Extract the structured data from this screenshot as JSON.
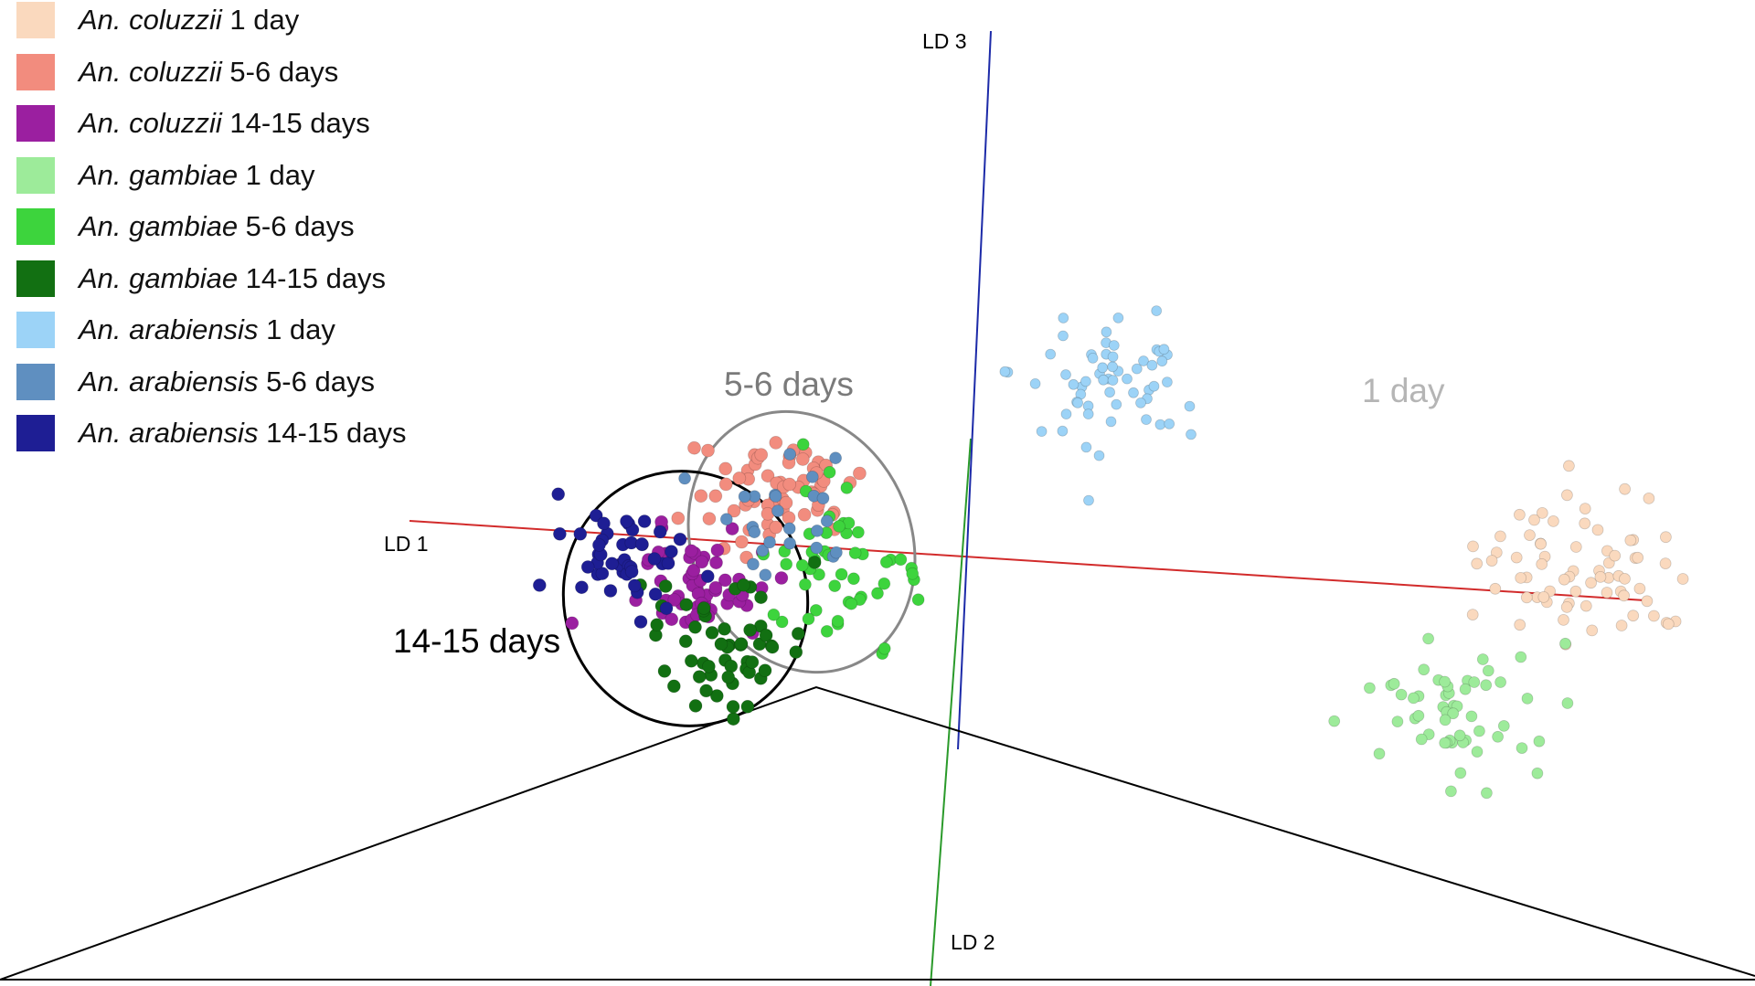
{
  "chart_data": {
    "type": "scatter",
    "title": "",
    "axes": {
      "x_label": "LD 1",
      "y_label": "LD 2",
      "z_label": "LD 3"
    },
    "legend": {
      "placement": "top-left",
      "entries": [
        {
          "species": "An. coluzzii",
          "age": "1 day",
          "color": "#FAD9BE"
        },
        {
          "species": "An. coluzzii",
          "age": "5-6 days",
          "color": "#F28C7E"
        },
        {
          "species": "An. coluzzii",
          "age": "14-15 days",
          "color": "#9B1FA0"
        },
        {
          "species": "An. gambiae",
          "age": "1 day",
          "color": "#9DEB9A"
        },
        {
          "species": "An. gambiae",
          "age": "5-6 days",
          "color": "#3DD43D"
        },
        {
          "species": "An. gambiae",
          "age": "14-15 days",
          "color": "#127012"
        },
        {
          "species": "An. arabiensis",
          "age": "1 day",
          "color": "#9CD3F7"
        },
        {
          "species": "An. arabiensis",
          "age": "5-6 days",
          "color": "#5F8FC0"
        },
        {
          "species": "An. arabiensis",
          "age": "14-15 days",
          "color": "#1E1E94"
        }
      ]
    },
    "group_annotations": [
      {
        "label": "5-6 days",
        "color": "#7a7a7a"
      },
      {
        "label": "1 day",
        "color": "#b5b5b5"
      },
      {
        "label": "14-15 days",
        "color": "#000000"
      }
    ],
    "grid": false,
    "axis_colors": {
      "LD 1": "#d22b2b",
      "LD 2": "#2a9a2a",
      "LD 3": "#1c2aa8"
    }
  }
}
